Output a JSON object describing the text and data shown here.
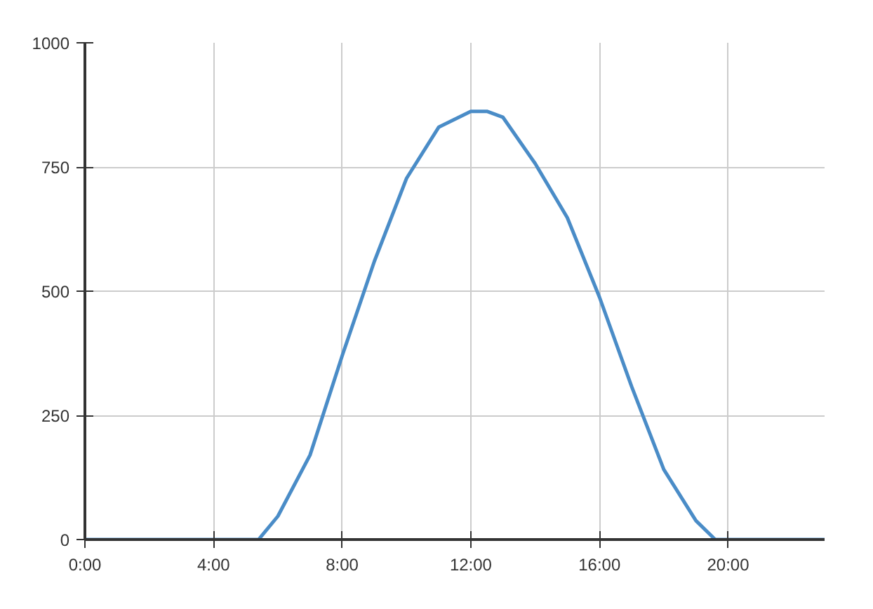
{
  "chart_data": {
    "type": "line",
    "x": [
      0,
      1,
      2,
      3,
      4,
      5,
      5.4,
      6,
      7,
      8,
      9,
      10,
      11,
      12,
      12.5,
      13,
      14,
      15,
      16,
      17,
      18,
      19,
      19.6,
      20,
      21,
      22,
      23
    ],
    "series": [
      {
        "color": "#4a8cc7",
        "values": [
          0,
          0,
          0,
          0,
          0,
          0,
          0,
          47,
          170,
          370,
          560,
          727,
          830,
          862,
          862,
          850,
          757,
          648,
          488,
          308,
          141,
          38,
          0,
          0,
          0,
          0,
          0
        ]
      }
    ],
    "xlim": [
      0,
      23
    ],
    "ylim": [
      0,
      1000
    ],
    "xticks": [
      {
        "value": 0,
        "label": "0:00"
      },
      {
        "value": 4,
        "label": "4:00"
      },
      {
        "value": 8,
        "label": "8:00"
      },
      {
        "value": 12,
        "label": "12:00"
      },
      {
        "value": 16,
        "label": "16:00"
      },
      {
        "value": 20,
        "label": "20:00"
      }
    ],
    "yticks": [
      0,
      250,
      500,
      750,
      1000
    ],
    "grid": true,
    "line_style": "solid"
  }
}
